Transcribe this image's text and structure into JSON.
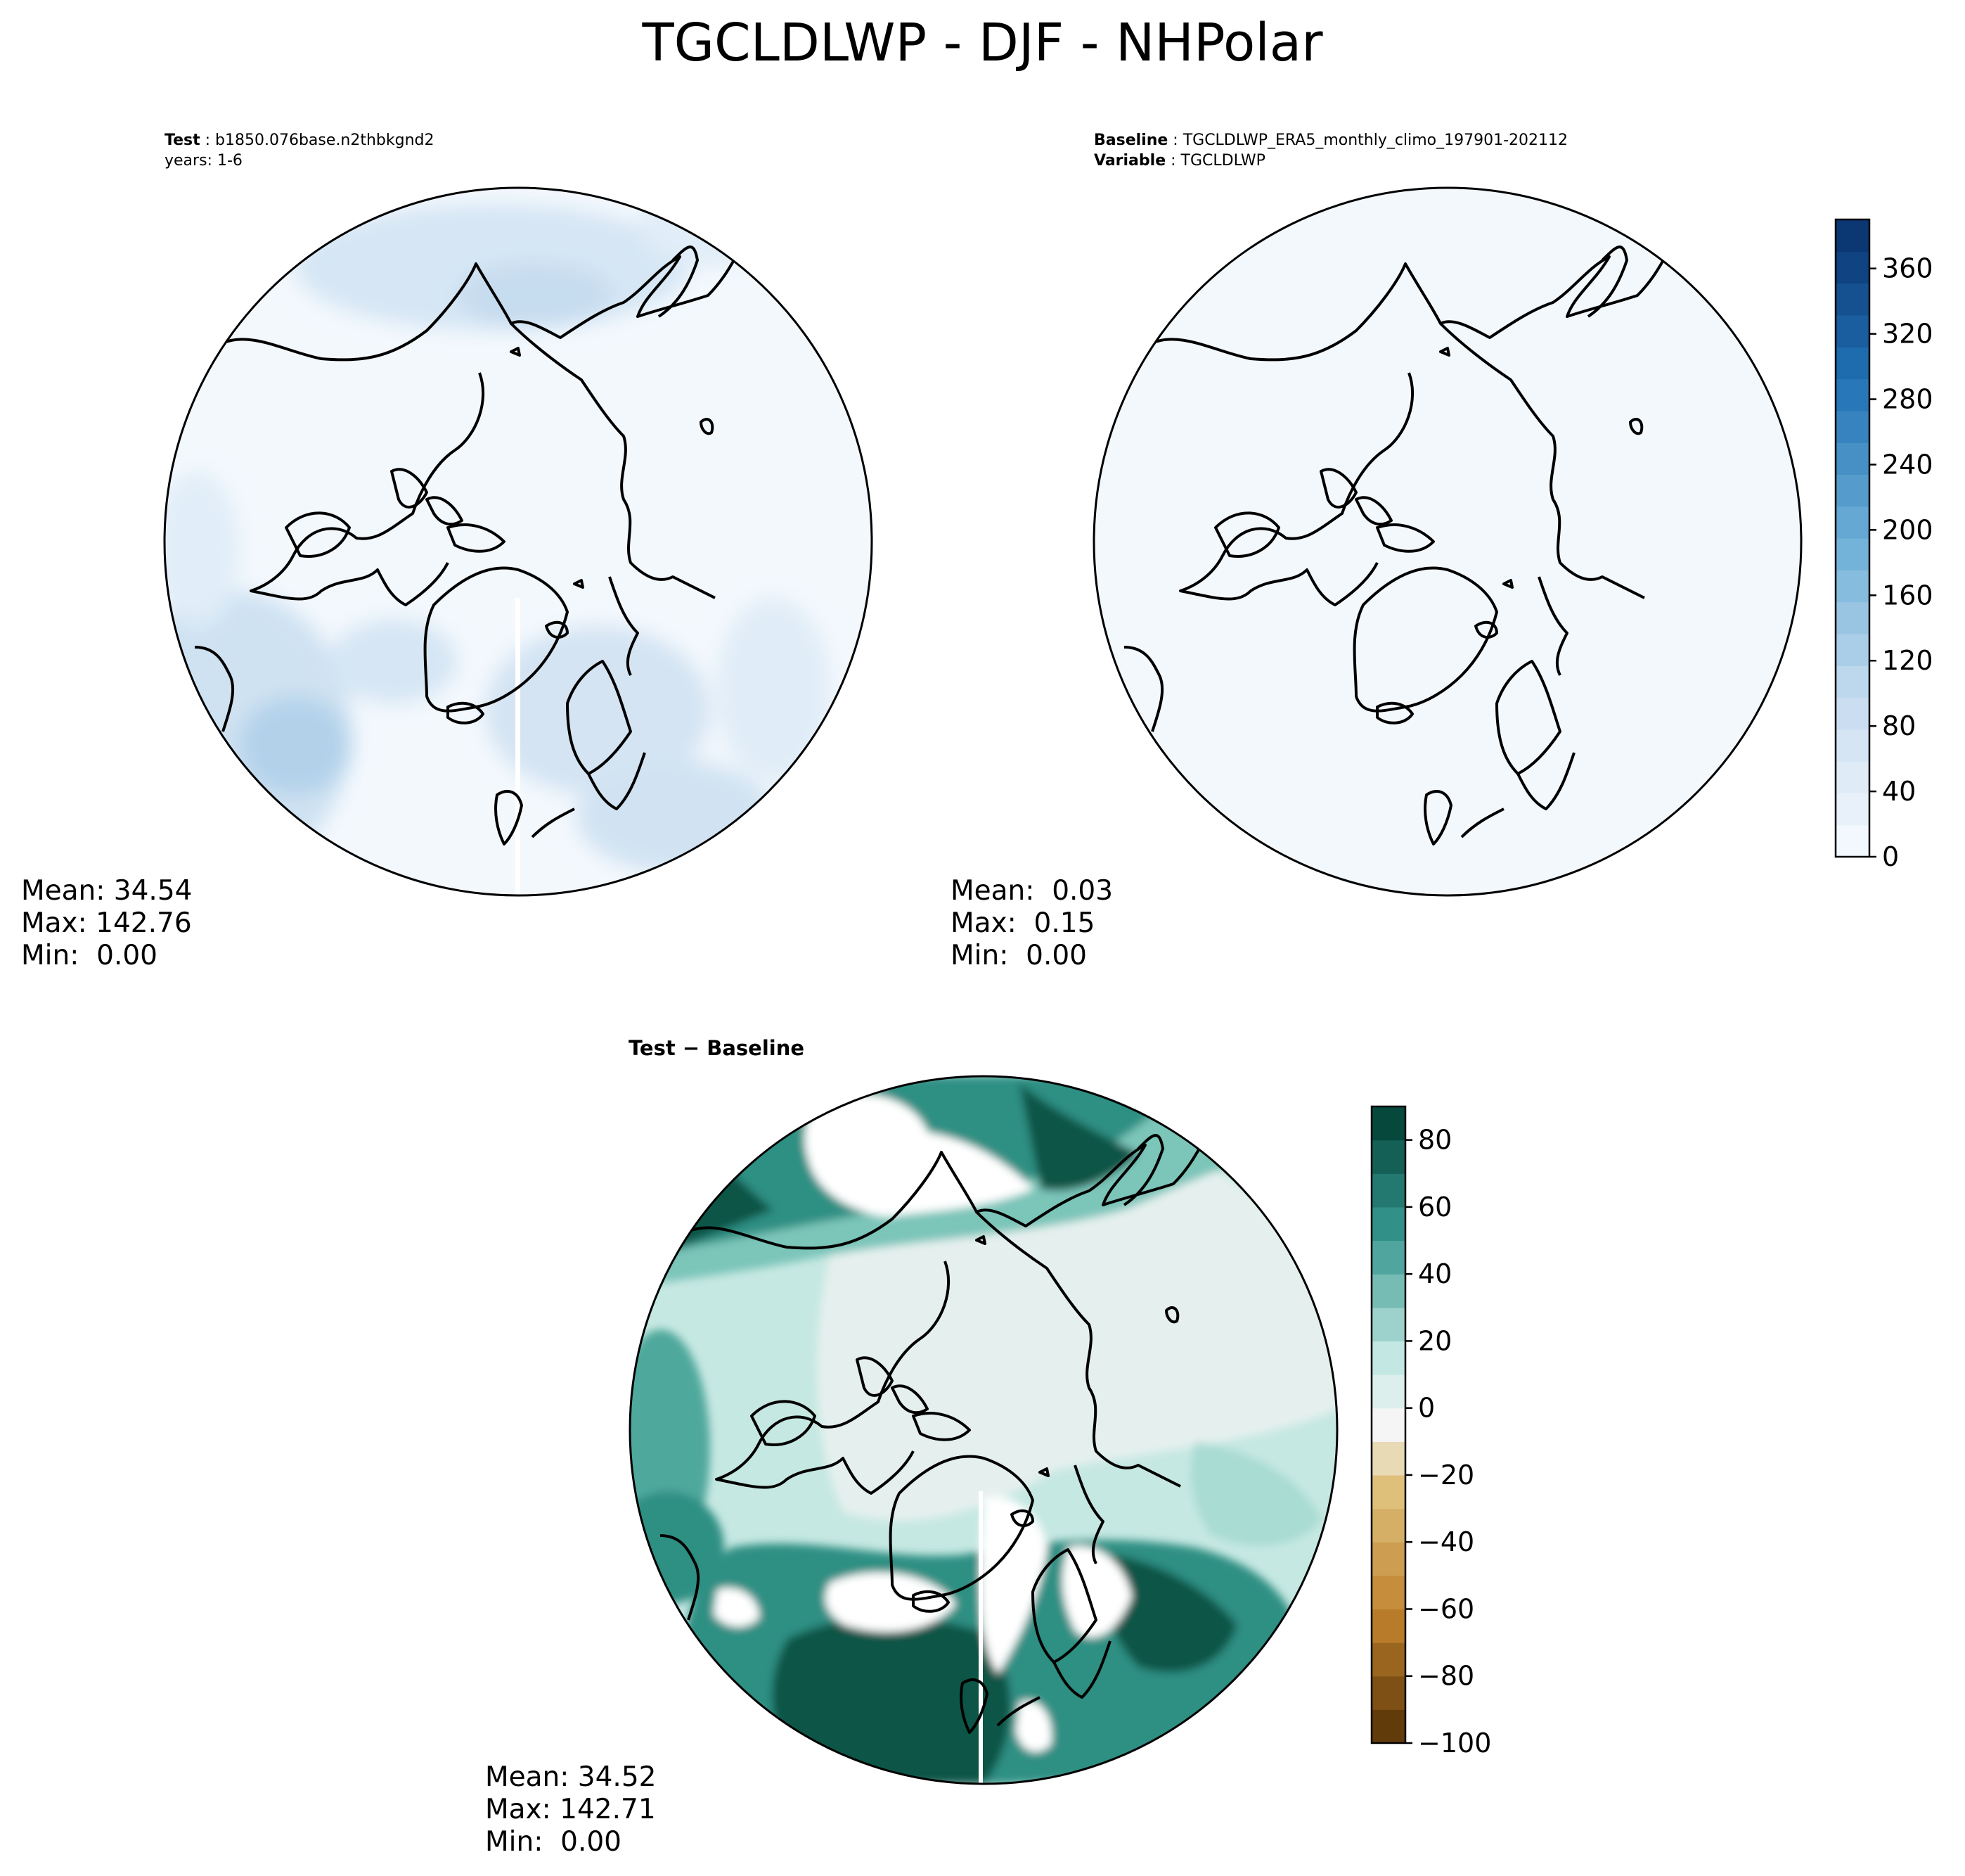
{
  "suptitle": "TGCLDLWP - DJF - NHPolar",
  "panels": {
    "test": {
      "label": "Test",
      "case": "b1850.076base.n2thbkgnd2",
      "years": "years: 1-6",
      "stats": {
        "mean": "Mean: 34.54",
        "max": "Max: 142.76",
        "min": "Min:  0.00"
      }
    },
    "baseline": {
      "label": "Baseline",
      "case": "TGCLDLWP_ERA5_monthly_climo_197901-202112",
      "variable_label": "Variable",
      "variable": "TGCLDLWP",
      "stats": {
        "mean": "Mean:  0.03",
        "max": "Max:  0.15",
        "min": "Min:  0.00"
      }
    },
    "diff": {
      "title": "Test − Baseline",
      "stats": {
        "mean": "Mean: 34.52",
        "max": "Max: 142.71",
        "min": "Min:  0.00"
      }
    }
  },
  "colorbars": {
    "field": {
      "cmap": "Blues",
      "ticks": [
        "0",
        "40",
        "80",
        "120",
        "160",
        "200",
        "240",
        "280",
        "320",
        "360"
      ],
      "range": [
        0,
        390
      ],
      "levels": 20
    },
    "diff": {
      "cmap": "BrBG",
      "ticks": [
        "−100",
        "−80",
        "−60",
        "−40",
        "−20",
        "0",
        "20",
        "40",
        "60",
        "80"
      ],
      "range": [
        -100,
        90
      ],
      "levels": 19
    }
  },
  "colors": {
    "land_outline": "#000000",
    "field_background": "#f3f8fd",
    "test_shade_light": "#dce9f6",
    "test_shade_mid": "#b5d3ea",
    "diff_near_zero": "#e5f0ee",
    "diff_low": "#c4e7e1",
    "diff_mid": "#7cc5b9",
    "diff_high": "#2e8f83",
    "diff_max": "#0c5447"
  }
}
